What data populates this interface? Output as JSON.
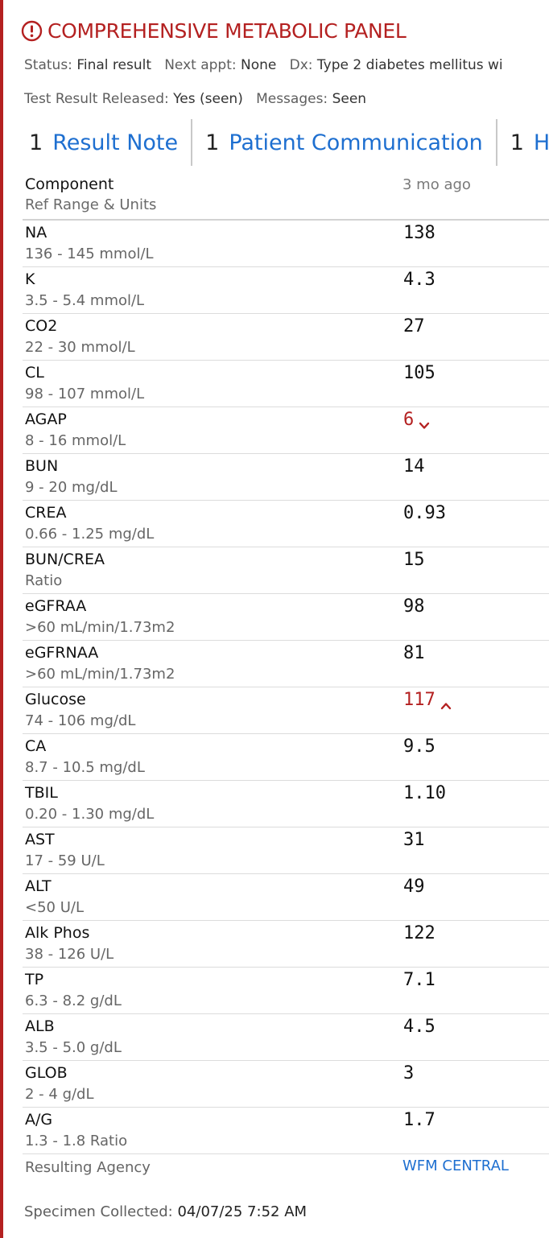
{
  "header": {
    "title": "COMPREHENSIVE METABOLIC PANEL",
    "icon": "alert-circle-icon",
    "accent_color": "#b42121"
  },
  "meta": {
    "status_label": "Status:",
    "status_value": "Final result",
    "next_appt_label": "Next appt:",
    "next_appt_value": "None",
    "dx_label": "Dx:",
    "dx_value": "Type 2 diabetes mellitus wi",
    "released_label": "Test Result Released:",
    "released_value": "Yes (seen)",
    "messages_label": "Messages:",
    "messages_value": "Seen"
  },
  "tabs": [
    {
      "count": "1",
      "label": "Result Note"
    },
    {
      "count": "1",
      "label": "Patient Communication"
    },
    {
      "count": "1",
      "label": "HM"
    }
  ],
  "table": {
    "component_header": "Component",
    "ref_header": "Ref Range & Units",
    "time_header": "3 mo ago",
    "rows": [
      {
        "name": "NA",
        "range": "136 - 145 mmol/L",
        "value": "138",
        "flag": ""
      },
      {
        "name": "K",
        "range": "3.5 - 5.4 mmol/L",
        "value": "4.3",
        "flag": ""
      },
      {
        "name": "CO2",
        "range": "22 - 30 mmol/L",
        "value": "27",
        "flag": ""
      },
      {
        "name": "CL",
        "range": "98 - 107 mmol/L",
        "value": "105",
        "flag": ""
      },
      {
        "name": "AGAP",
        "range": "8 - 16 mmol/L",
        "value": "6",
        "flag": "low"
      },
      {
        "name": "BUN",
        "range": "9 - 20 mg/dL",
        "value": "14",
        "flag": ""
      },
      {
        "name": "CREA",
        "range": "0.66 - 1.25 mg/dL",
        "value": "0.93",
        "flag": ""
      },
      {
        "name": "BUN/CREA",
        "range": "Ratio",
        "value": "15",
        "flag": ""
      },
      {
        "name": "eGFRAA",
        "range": ">60 mL/min/1.73m2",
        "value": "98",
        "flag": ""
      },
      {
        "name": "eGFRNAA",
        "range": ">60 mL/min/1.73m2",
        "value": "81",
        "flag": ""
      },
      {
        "name": "Glucose",
        "range": "74 - 106 mg/dL",
        "value": "117",
        "flag": "high"
      },
      {
        "name": "CA",
        "range": "8.7 - 10.5 mg/dL",
        "value": "9.5",
        "flag": ""
      },
      {
        "name": "TBIL",
        "range": "0.20 - 1.30 mg/dL",
        "value": "1.10",
        "flag": ""
      },
      {
        "name": "AST",
        "range": "17 - 59 U/L",
        "value": "31",
        "flag": ""
      },
      {
        "name": "ALT",
        "range": "<50 U/L",
        "value": "49",
        "flag": ""
      },
      {
        "name": "Alk Phos",
        "range": "38 - 126 U/L",
        "value": "122",
        "flag": ""
      },
      {
        "name": "TP",
        "range": "6.3 - 8.2 g/dL",
        "value": "7.1",
        "flag": ""
      },
      {
        "name": "ALB",
        "range": "3.5 - 5.0 g/dL",
        "value": "4.5",
        "flag": ""
      },
      {
        "name": "GLOB",
        "range": "2 - 4 g/dL",
        "value": "3",
        "flag": ""
      },
      {
        "name": "A/G",
        "range": "1.3 - 1.8 Ratio",
        "value": "1.7",
        "flag": ""
      }
    ],
    "agency_label": "Resulting Agency",
    "agency_value": "WFM CENTRAL"
  },
  "specimen": {
    "label": "Specimen Collected:",
    "value": "04/07/25  7:52 AM"
  }
}
